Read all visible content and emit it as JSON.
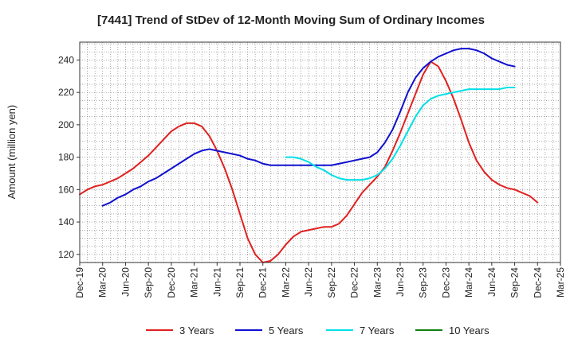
{
  "chart_data": {
    "type": "line",
    "title": "[7441]  Trend of StDev of 12-Month Moving Sum of Ordinary Incomes",
    "ylabel": "Amount (million yen)",
    "xlabel": "",
    "ylim": [
      115,
      251
    ],
    "yticks": [
      120,
      140,
      160,
      180,
      200,
      220,
      240
    ],
    "x_categories": [
      "Dec-19",
      "Mar-20",
      "Jun-20",
      "Sep-20",
      "Dec-20",
      "Mar-21",
      "Jun-21",
      "Sep-21",
      "Dec-21",
      "Mar-22",
      "Jun-22",
      "Sep-22",
      "Dec-22",
      "Mar-23",
      "Jun-23",
      "Sep-23",
      "Dec-23",
      "Mar-24",
      "Jun-24",
      "Sep-24",
      "Dec-24",
      "Mar-25"
    ],
    "grid": true,
    "legend_position": "bottom",
    "series": [
      {
        "name": "3 Years",
        "color": "#e02020",
        "start_index": 0,
        "values": [
          157,
          160,
          162,
          163,
          165,
          167,
          170,
          173,
          177,
          181,
          186,
          191,
          196,
          199,
          201,
          201,
          199,
          193,
          184,
          173,
          160,
          145,
          130,
          120,
          115,
          116,
          120,
          126,
          131,
          134,
          135,
          136,
          137,
          137,
          139,
          144,
          151,
          158,
          163,
          168,
          174,
          184,
          195,
          207,
          219,
          231,
          239,
          236,
          227,
          216,
          203,
          189,
          178,
          171,
          166,
          163,
          161,
          160,
          158,
          156,
          152
        ]
      },
      {
        "name": "5 Years",
        "color": "#1010d0",
        "start_index": 3,
        "values": [
          150,
          152,
          155,
          157,
          160,
          162,
          165,
          167,
          170,
          173,
          176,
          179,
          182,
          184,
          185,
          184,
          183,
          182,
          181,
          179,
          178,
          176,
          175,
          175,
          175,
          175,
          175,
          175,
          175,
          175,
          175,
          176,
          177,
          178,
          179,
          180,
          183,
          189,
          197,
          208,
          220,
          229,
          235,
          239,
          242,
          244,
          246,
          247,
          247,
          246,
          244,
          241,
          239,
          237,
          236
        ]
      },
      {
        "name": "7 Years",
        "color": "#00e0e8",
        "start_index": 27,
        "values": [
          180,
          180,
          179,
          177,
          174,
          172,
          169,
          167,
          166,
          166,
          166,
          167,
          169,
          173,
          179,
          187,
          196,
          205,
          212,
          216,
          218,
          219,
          220,
          221,
          222,
          222,
          222,
          222,
          222,
          223,
          223
        ]
      },
      {
        "name": "10 Years",
        "color": "#108010",
        "start_index": 0,
        "values": []
      }
    ]
  }
}
